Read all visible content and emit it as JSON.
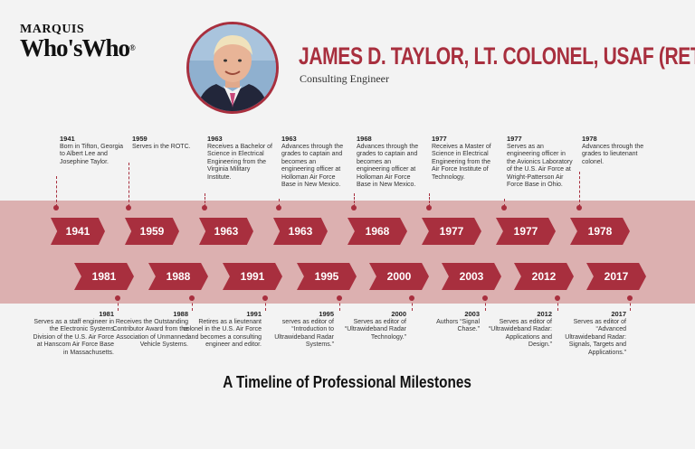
{
  "logo": {
    "line1": "MARQUIS",
    "line2": "Who'sWho",
    "reg": "®"
  },
  "header": {
    "name": "JAMES D. TAYLOR, LT. COLONEL, USAF (RET.)",
    "subtitle": "Consulting Engineer"
  },
  "colors": {
    "accent": "#a82f3e",
    "band": "#dcb0b0"
  },
  "top_events": [
    {
      "year": "1941",
      "text": "Born in Tifton, Georgia to Albert Lee and Josephine Taylor."
    },
    {
      "year": "1959",
      "text": "Serves in the ROTC."
    },
    {
      "year": "1963",
      "text": "Receives a Bachelor of Science in Electrical Engineering from the Virginia Military Institute."
    },
    {
      "year": "1963",
      "text": "Advances through the grades to captain and becomes an engineering officer at Holloman Air Force Base in New Mexico."
    },
    {
      "year": "1968",
      "text": "Advances through the grades to captain and becomes an engineering officer at Holloman Air Force Base in New Mexico."
    },
    {
      "year": "1977",
      "text": "Receives a Master of Science in Electrical Engineering from the Air Force Institute of Technology."
    },
    {
      "year": "1977",
      "text": "Serves as an engineering officer in the Avionics Laboratory of the U.S. Air Force at Wright-Patterson Air Force Base in Ohio."
    },
    {
      "year": "1978",
      "text": "Advances through the grades to lieutenant colonel."
    }
  ],
  "bottom_events": [
    {
      "year": "1981",
      "text": "Serves as a staff engineer in the Electronic Systems Division of the U.S. Air Force at Hanscom Air Force Base in Massachusetts."
    },
    {
      "year": "1988",
      "text": "Receives the Outstanding Contributor Award from the Association of Unmanned Vehicle Systems."
    },
    {
      "year": "1991",
      "text": "Retires as a lieutenant colonel in the U.S. Air Force and becomes a consulting engineer and editor."
    },
    {
      "year": "1995",
      "text": "serves as editor of “Introduction to Ultrawideband Radar Systems.”"
    },
    {
      "year": "2000",
      "text": "Serves as editor of “Ultrawideband Radar Technology.”"
    },
    {
      "year": "2003",
      "text": "Authors “Signal Chase.”"
    },
    {
      "year": "2012",
      "text": "Serves as editor of “Ultrawideband Radar: Applications and Design.”"
    },
    {
      "year": "2017",
      "text": "Serves as editor of “Advanced Ultrawideband Radar: Signals, Targets and Applications.”"
    }
  ],
  "footer": {
    "title": "A Timeline of Professional Milestones"
  }
}
